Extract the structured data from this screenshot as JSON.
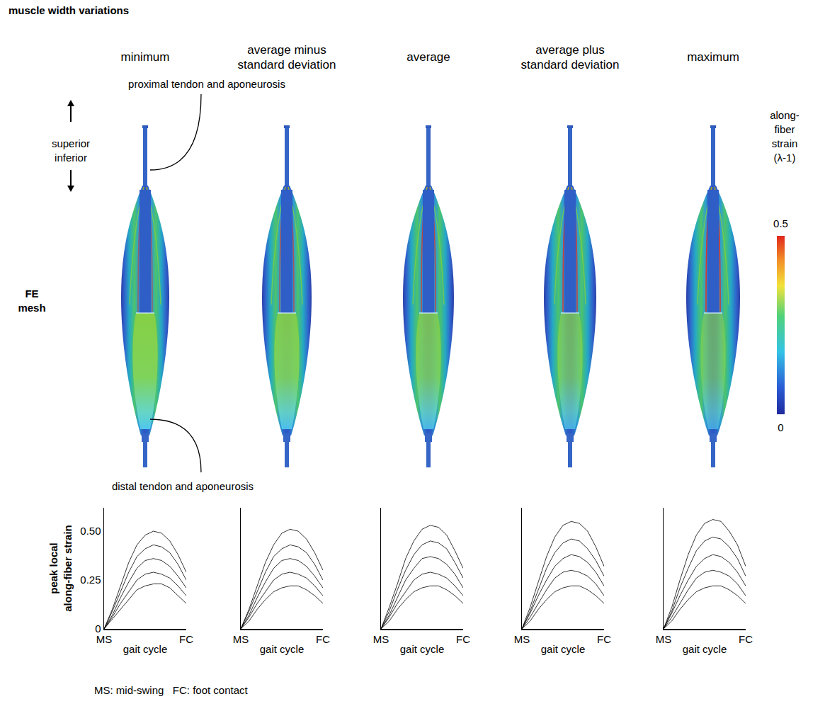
{
  "title": "muscle width variations",
  "columns": [
    "minimum",
    "average minus standard deviation",
    "average",
    "average plus standard deviation",
    "maximum"
  ],
  "mesh": {
    "row_label": "FE mesh",
    "direction_labels": [
      "superior",
      "inferior"
    ],
    "proximal_label": "proximal tendon and aponeurosis",
    "distal_label": "distal tendon and aponeurosis",
    "colorbar": {
      "title": "along-fiber strain (λ-1)",
      "range": [
        0,
        0.5
      ],
      "ticks": [
        0,
        0.5
      ]
    }
  },
  "chart_data": [
    {
      "type": "line",
      "x": [
        0,
        0.1,
        0.2,
        0.3,
        0.4,
        0.5,
        0.6,
        0.7,
        0.8,
        0.9,
        1.0
      ],
      "xlim": [
        0,
        1
      ],
      "xticks": [
        {
          "value": 0,
          "label": "MS"
        },
        {
          "value": 1,
          "label": "FC"
        }
      ],
      "xlabel": "gait cycle",
      "ylabel": "peak local along-fiber strain",
      "ylim": [
        0,
        0.62
      ],
      "yticks": [
        0,
        0.25,
        {
          "value": 0.5,
          "label": "0.50"
        }
      ],
      "grid": false,
      "tick_labels": true,
      "series": [
        {
          "color": "#000000",
          "values": [
            0,
            0.1,
            0.22,
            0.34,
            0.43,
            0.48,
            0.5,
            0.49,
            0.45,
            0.38,
            0.29
          ]
        },
        {
          "color": "#000000",
          "values": [
            0,
            0.09,
            0.19,
            0.29,
            0.37,
            0.41,
            0.43,
            0.42,
            0.39,
            0.33,
            0.25
          ]
        },
        {
          "color": "#000000",
          "values": [
            0,
            0.07,
            0.16,
            0.24,
            0.31,
            0.35,
            0.36,
            0.35,
            0.32,
            0.27,
            0.21
          ]
        },
        {
          "color": "#000000",
          "values": [
            0,
            0.06,
            0.13,
            0.19,
            0.25,
            0.28,
            0.29,
            0.28,
            0.26,
            0.22,
            0.17
          ]
        },
        {
          "color": "#000000",
          "values": [
            0,
            0.05,
            0.1,
            0.15,
            0.2,
            0.22,
            0.23,
            0.23,
            0.21,
            0.17,
            0.13
          ]
        }
      ]
    },
    {
      "type": "line",
      "x": [
        0,
        0.1,
        0.2,
        0.3,
        0.4,
        0.5,
        0.6,
        0.7,
        0.8,
        0.9,
        1.0
      ],
      "xlim": [
        0,
        1
      ],
      "xticks": [
        {
          "value": 0,
          "label": "MS"
        },
        {
          "value": 1,
          "label": "FC"
        }
      ],
      "xlabel": "gait cycle",
      "ylim": [
        0,
        0.62
      ],
      "grid": false,
      "tick_labels": "x",
      "series": [
        {
          "color": "#000000",
          "values": [
            0,
            0.1,
            0.22,
            0.34,
            0.43,
            0.49,
            0.51,
            0.5,
            0.46,
            0.39,
            0.3
          ]
        },
        {
          "color": "#000000",
          "values": [
            0,
            0.09,
            0.19,
            0.29,
            0.37,
            0.41,
            0.43,
            0.42,
            0.39,
            0.33,
            0.25
          ]
        },
        {
          "color": "#000000",
          "values": [
            0,
            0.07,
            0.16,
            0.24,
            0.31,
            0.35,
            0.36,
            0.35,
            0.32,
            0.27,
            0.21
          ]
        },
        {
          "color": "#000000",
          "values": [
            0,
            0.06,
            0.13,
            0.19,
            0.25,
            0.28,
            0.29,
            0.28,
            0.26,
            0.22,
            0.17
          ]
        },
        {
          "color": "#000000",
          "values": [
            0,
            0.04,
            0.1,
            0.15,
            0.19,
            0.21,
            0.22,
            0.22,
            0.2,
            0.17,
            0.13
          ]
        }
      ]
    },
    {
      "type": "line",
      "x": [
        0,
        0.1,
        0.2,
        0.3,
        0.4,
        0.5,
        0.6,
        0.7,
        0.8,
        0.9,
        1.0
      ],
      "xlim": [
        0,
        1
      ],
      "xticks": [
        {
          "value": 0,
          "label": "MS"
        },
        {
          "value": 1,
          "label": "FC"
        }
      ],
      "xlabel": "gait cycle",
      "ylim": [
        0,
        0.62
      ],
      "grid": false,
      "tick_labels": "x",
      "series": [
        {
          "color": "#000000",
          "values": [
            0,
            0.11,
            0.23,
            0.36,
            0.45,
            0.51,
            0.53,
            0.52,
            0.48,
            0.4,
            0.31
          ]
        },
        {
          "color": "#000000",
          "values": [
            0,
            0.09,
            0.2,
            0.3,
            0.38,
            0.43,
            0.45,
            0.44,
            0.41,
            0.34,
            0.26
          ]
        },
        {
          "color": "#000000",
          "values": [
            0,
            0.07,
            0.16,
            0.25,
            0.31,
            0.36,
            0.37,
            0.36,
            0.33,
            0.28,
            0.21
          ]
        },
        {
          "color": "#000000",
          "values": [
            0,
            0.06,
            0.13,
            0.19,
            0.25,
            0.28,
            0.29,
            0.28,
            0.26,
            0.22,
            0.17
          ]
        },
        {
          "color": "#000000",
          "values": [
            0,
            0.04,
            0.1,
            0.15,
            0.19,
            0.21,
            0.22,
            0.22,
            0.2,
            0.17,
            0.13
          ]
        }
      ]
    },
    {
      "type": "line",
      "x": [
        0,
        0.1,
        0.2,
        0.3,
        0.4,
        0.5,
        0.6,
        0.7,
        0.8,
        0.9,
        1.0
      ],
      "xlim": [
        0,
        1
      ],
      "xticks": [
        {
          "value": 0,
          "label": "MS"
        },
        {
          "value": 1,
          "label": "FC"
        }
      ],
      "xlabel": "gait cycle",
      "ylim": [
        0,
        0.62
      ],
      "grid": false,
      "tick_labels": "x",
      "series": [
        {
          "color": "#000000",
          "values": [
            0,
            0.11,
            0.24,
            0.37,
            0.47,
            0.53,
            0.55,
            0.54,
            0.5,
            0.42,
            0.32
          ]
        },
        {
          "color": "#000000",
          "values": [
            0,
            0.09,
            0.2,
            0.31,
            0.39,
            0.44,
            0.46,
            0.45,
            0.41,
            0.35,
            0.27
          ]
        },
        {
          "color": "#000000",
          "values": [
            0,
            0.08,
            0.17,
            0.25,
            0.32,
            0.36,
            0.38,
            0.37,
            0.34,
            0.29,
            0.22
          ]
        },
        {
          "color": "#000000",
          "values": [
            0,
            0.06,
            0.13,
            0.2,
            0.26,
            0.29,
            0.3,
            0.29,
            0.27,
            0.23,
            0.17
          ]
        },
        {
          "color": "#000000",
          "values": [
            0,
            0.04,
            0.1,
            0.15,
            0.19,
            0.21,
            0.22,
            0.22,
            0.2,
            0.17,
            0.13
          ]
        }
      ]
    },
    {
      "type": "line",
      "x": [
        0,
        0.1,
        0.2,
        0.3,
        0.4,
        0.5,
        0.6,
        0.7,
        0.8,
        0.9,
        1.0
      ],
      "xlim": [
        0,
        1
      ],
      "xticks": [
        {
          "value": 0,
          "label": "MS"
        },
        {
          "value": 1,
          "label": "FC"
        }
      ],
      "xlabel": "gait cycle",
      "ylim": [
        0,
        0.62
      ],
      "grid": false,
      "tick_labels": "x",
      "series": [
        {
          "color": "#000000",
          "values": [
            0,
            0.11,
            0.25,
            0.38,
            0.48,
            0.54,
            0.56,
            0.55,
            0.5,
            0.43,
            0.32
          ]
        },
        {
          "color": "#000000",
          "values": [
            0,
            0.09,
            0.21,
            0.31,
            0.4,
            0.45,
            0.47,
            0.46,
            0.42,
            0.36,
            0.27
          ]
        },
        {
          "color": "#000000",
          "values": [
            0,
            0.08,
            0.17,
            0.25,
            0.32,
            0.36,
            0.38,
            0.37,
            0.34,
            0.29,
            0.22
          ]
        },
        {
          "color": "#000000",
          "values": [
            0,
            0.06,
            0.13,
            0.2,
            0.26,
            0.29,
            0.3,
            0.29,
            0.27,
            0.23,
            0.17
          ]
        },
        {
          "color": "#000000",
          "values": [
            0,
            0.04,
            0.1,
            0.15,
            0.19,
            0.21,
            0.22,
            0.22,
            0.2,
            0.17,
            0.13
          ]
        }
      ]
    }
  ],
  "footnote": "MS: mid-swing   FC: foot contact"
}
